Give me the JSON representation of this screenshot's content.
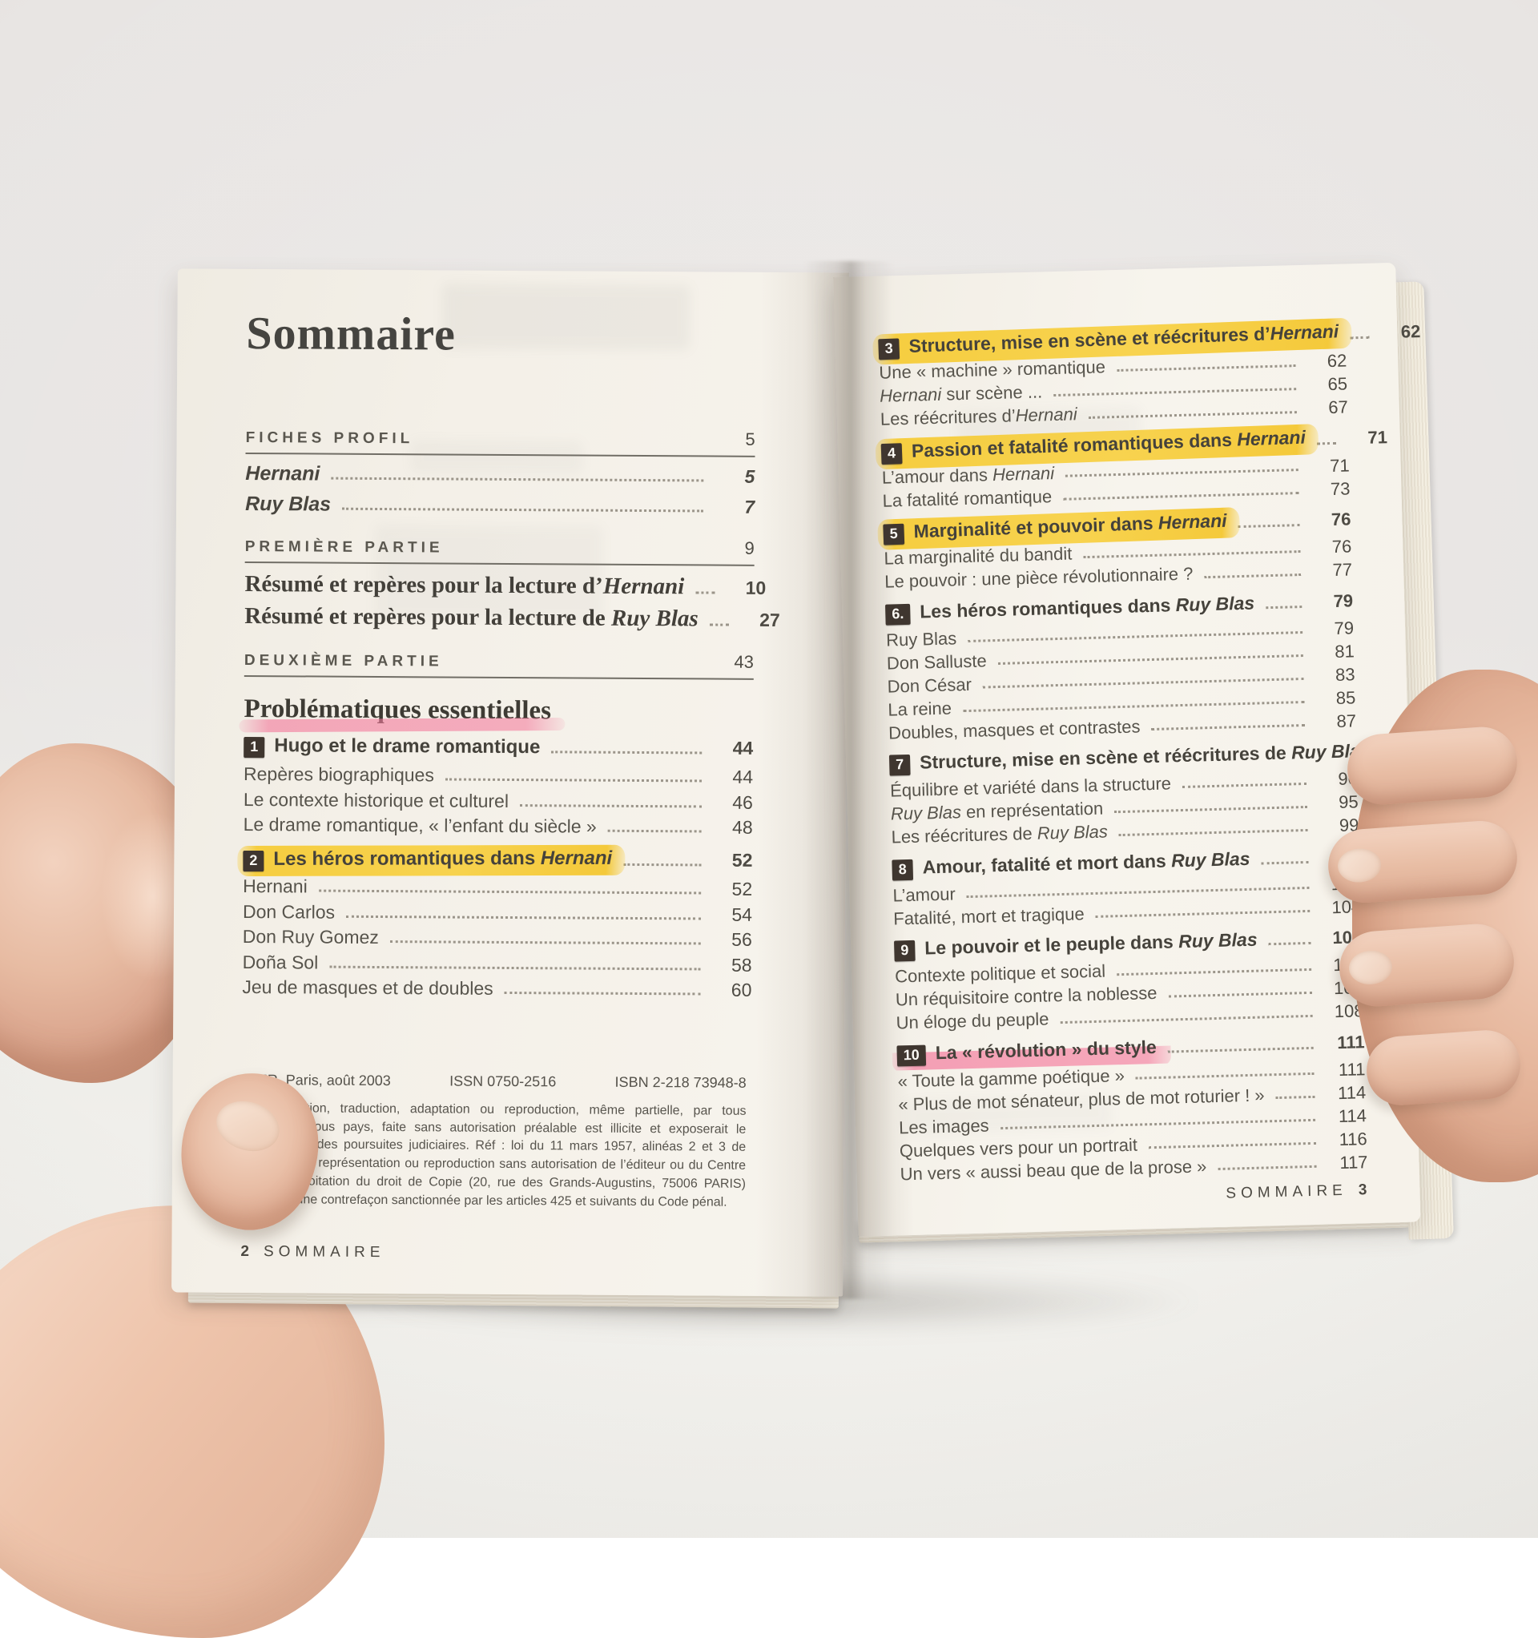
{
  "colors": {
    "highlight_yellow": "#f6c41f",
    "highlight_pink": "#f27da0",
    "chapter_badge": "#3f362f",
    "page_paper": "#f5f1ea"
  },
  "left_page": {
    "title": "Sommaire",
    "entries": [
      {
        "type": "section",
        "label": "FICHES PROFIL",
        "page": "5"
      },
      {
        "type": "work",
        "segs": [
          [
            "Hernani",
            1
          ]
        ],
        "page": "5"
      },
      {
        "type": "work",
        "segs": [
          [
            "Ruy Blas",
            1
          ]
        ],
        "page": "7"
      },
      {
        "type": "section",
        "label": "PREMIÈRE PARTIE",
        "page": "9"
      },
      {
        "type": "big",
        "segs": [
          [
            "Résumé et repères pour la lecture d’",
            0
          ],
          [
            "Hernani",
            1
          ]
        ],
        "page": "10"
      },
      {
        "type": "big",
        "segs": [
          [
            "Résumé et repères pour la lecture de ",
            0
          ],
          [
            "Ruy Blas",
            1
          ]
        ],
        "page": "27"
      },
      {
        "type": "section",
        "label": "DEUXIÈME PARTIE",
        "page": "43"
      },
      {
        "type": "heading2",
        "label": "Problématiques essentielles"
      },
      {
        "type": "chap",
        "num": "1",
        "segs": [
          [
            "Hugo et le drame romantique",
            0
          ]
        ],
        "page": "44"
      },
      {
        "type": "sub",
        "segs": [
          [
            "Repères biographiques",
            0
          ]
        ],
        "page": "44"
      },
      {
        "type": "sub",
        "segs": [
          [
            "Le contexte historique et culturel",
            0
          ]
        ],
        "page": "46"
      },
      {
        "type": "sub",
        "segs": [
          [
            "Le drame romantique, « l’enfant du siècle »",
            0
          ]
        ],
        "page": "48"
      },
      {
        "type": "chap",
        "num": "2",
        "segs": [
          [
            "Les héros romantiques dans ",
            0
          ],
          [
            "Hernani",
            1
          ]
        ],
        "page": "52",
        "hl": "yellow"
      },
      {
        "type": "sub",
        "segs": [
          [
            "Hernani",
            0
          ]
        ],
        "page": "52"
      },
      {
        "type": "sub",
        "segs": [
          [
            "Don Carlos",
            0
          ]
        ],
        "page": "54"
      },
      {
        "type": "sub",
        "segs": [
          [
            "Don Ruy Gomez",
            0
          ]
        ],
        "page": "56"
      },
      {
        "type": "sub",
        "segs": [
          [
            "Doña Sol",
            0
          ]
        ],
        "page": "58"
      },
      {
        "type": "sub",
        "segs": [
          [
            "Jeu de masques et de doubles",
            0
          ]
        ],
        "page": "60"
      }
    ],
    "copyright": {
      "publisher": "TIER, Paris, août 2003",
      "issn": "ISSN 0750-2516",
      "isbn": "ISBN 2-218 73948-8",
      "legal": "te représentation, traduction, adaptation ou reproduction, même partielle, par tous procédés, en tous pays, faite sans autorisation préalable est illicite et exposerait le contrevenant à des poursuites judiciaires. Réf : loi du 11 mars 1957, alinéas 2 et 3 de l’article 41. Une représentation ou reproduction sans autorisation de l’éditeur ou du Centre français d’exploitation du droit de Copie (20, rue des Grands-Augustins, 75006 PARIS) constituerait une contrefaçon sanctionnée par les articles 425 et suivants du Code pénal."
    },
    "footer": {
      "page_num": "2",
      "label": "SOMMAIRE"
    }
  },
  "right_page": {
    "entries": [
      {
        "type": "chap",
        "num": "3",
        "segs": [
          [
            "Structure, mise en scène et réécritures d’",
            0
          ],
          [
            "Hernani",
            1
          ]
        ],
        "page": "62",
        "hl": "yellow"
      },
      {
        "type": "sub",
        "segs": [
          [
            "Une « machine » romantique",
            0
          ]
        ],
        "page": "62"
      },
      {
        "type": "sub",
        "segs": [
          [
            "Hernani",
            1
          ],
          [
            " sur scène ...",
            0
          ]
        ],
        "page": "65"
      },
      {
        "type": "sub",
        "segs": [
          [
            "Les réécritures d’",
            0
          ],
          [
            "Hernani",
            1
          ]
        ],
        "page": "67"
      },
      {
        "type": "chap",
        "num": "4",
        "segs": [
          [
            "Passion et fatalité romantiques dans ",
            0
          ],
          [
            "Hernani",
            1
          ]
        ],
        "page": "71",
        "hl": "yellow"
      },
      {
        "type": "sub",
        "segs": [
          [
            "L’amour dans ",
            0
          ],
          [
            "Hernani",
            1
          ]
        ],
        "page": "71"
      },
      {
        "type": "sub",
        "segs": [
          [
            "La fatalité romantique",
            0
          ]
        ],
        "page": "73"
      },
      {
        "type": "chap",
        "num": "5",
        "segs": [
          [
            "Marginalité et pouvoir dans ",
            0
          ],
          [
            "Hernani",
            1
          ]
        ],
        "page": "76",
        "hl": "yellow"
      },
      {
        "type": "sub",
        "segs": [
          [
            "La marginalité du bandit",
            0
          ]
        ],
        "page": "76"
      },
      {
        "type": "sub",
        "segs": [
          [
            "Le pouvoir : une pièce révolutionnaire ?",
            0
          ]
        ],
        "page": "77"
      },
      {
        "type": "chap",
        "num": "6.",
        "segs": [
          [
            "Les héros romantiques dans ",
            0
          ],
          [
            "Ruy Blas",
            1
          ]
        ],
        "page": "79"
      },
      {
        "type": "sub",
        "segs": [
          [
            "Ruy Blas",
            0
          ]
        ],
        "page": "79"
      },
      {
        "type": "sub",
        "segs": [
          [
            "Don Salluste",
            0
          ]
        ],
        "page": "81"
      },
      {
        "type": "sub",
        "segs": [
          [
            "Don César",
            0
          ]
        ],
        "page": "83"
      },
      {
        "type": "sub",
        "segs": [
          [
            "La reine",
            0
          ]
        ],
        "page": "85"
      },
      {
        "type": "sub",
        "segs": [
          [
            "Doubles, masques et contrastes",
            0
          ]
        ],
        "page": "87"
      },
      {
        "type": "chap",
        "num": "7",
        "segs": [
          [
            "Structure, mise en scène et réécritures de ",
            0
          ],
          [
            "Ruy Blas",
            1
          ]
        ],
        "page": "90"
      },
      {
        "type": "sub",
        "segs": [
          [
            "Équilibre et variété dans la structure",
            0
          ]
        ],
        "page": "90"
      },
      {
        "type": "sub",
        "segs": [
          [
            "Ruy Blas",
            1
          ],
          [
            " en représentation",
            0
          ]
        ],
        "page": "95"
      },
      {
        "type": "sub",
        "segs": [
          [
            "Les réécritures de ",
            0
          ],
          [
            "Ruy Blas",
            1
          ]
        ],
        "page": "99"
      },
      {
        "type": "chap",
        "num": "8",
        "segs": [
          [
            "Amour, fatalité et mort dans ",
            0
          ],
          [
            "Ruy Blas",
            1
          ]
        ],
        "page": "102"
      },
      {
        "type": "sub",
        "segs": [
          [
            "L’amour",
            0
          ]
        ],
        "page": "102"
      },
      {
        "type": "sub",
        "segs": [
          [
            "Fatalité, mort et tragique",
            0
          ]
        ],
        "page": "104"
      },
      {
        "type": "chap",
        "num": "9",
        "segs": [
          [
            "Le pouvoir et le peuple dans ",
            0
          ],
          [
            "Ruy Blas",
            1
          ]
        ],
        "page": "107"
      },
      {
        "type": "sub",
        "segs": [
          [
            "Contexte politique et social",
            0
          ]
        ],
        "page": "107"
      },
      {
        "type": "sub",
        "segs": [
          [
            "Un réquisitoire contre la noblesse",
            0
          ]
        ],
        "page": "108"
      },
      {
        "type": "sub",
        "segs": [
          [
            "Un éloge du peuple",
            0
          ]
        ],
        "page": "108"
      },
      {
        "type": "chap",
        "num": "10",
        "segs": [
          [
            "La « révolution » du style",
            0
          ]
        ],
        "page": "111",
        "hl": "pink"
      },
      {
        "type": "sub",
        "segs": [
          [
            "« Toute la gamme poétique »",
            0
          ]
        ],
        "page": "111"
      },
      {
        "type": "sub",
        "segs": [
          [
            "« Plus de mot sénateur, plus de mot roturier ! »",
            0
          ]
        ],
        "page": "114"
      },
      {
        "type": "sub",
        "segs": [
          [
            "Les images",
            0
          ]
        ],
        "page": "114"
      },
      {
        "type": "sub",
        "segs": [
          [
            "Quelques vers pour un portrait",
            0
          ]
        ],
        "page": "116"
      },
      {
        "type": "sub",
        "segs": [
          [
            "Un vers « aussi beau que de la prose »",
            0
          ]
        ],
        "page": "117"
      }
    ],
    "footer": {
      "label": "SOMMAIRE",
      "page_num": "3"
    }
  }
}
